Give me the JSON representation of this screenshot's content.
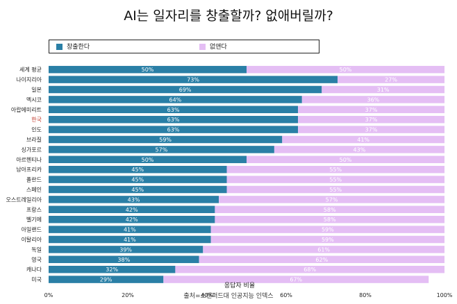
{
  "title": "AI는 일자리를 창출할까? 없애버릴까?",
  "legend": [
    {
      "label": "창출한다",
      "color": "#2a7fa6"
    },
    {
      "label": "없앤다",
      "color": "#e4bef4"
    }
  ],
  "source": "출처=스탠퍼드대 인공지능 인덱스",
  "chart_data": {
    "type": "bar",
    "orientation": "horizontal",
    "stacked": true,
    "title": "AI는 일자리를 창출할까? 없애버릴까?",
    "xlabel": "응답자 비율",
    "ylabel": "",
    "xlim": [
      0,
      100
    ],
    "xticks": [
      "0%",
      "20%",
      "40%",
      "60%",
      "80%",
      "100%"
    ],
    "highlight_category": "한국",
    "highlight_color": "#c0392b",
    "categories": [
      "세계 평균",
      "나이지리아",
      "일본",
      "멕시코",
      "아랍에미리트",
      "한국",
      "인도",
      "브라질",
      "싱가포르",
      "아르헨티나",
      "남아프리카",
      "폴란드",
      "스페인",
      "오스트레일리아",
      "프랑스",
      "벨기에",
      "아일랜드",
      "이탈리아",
      "독일",
      "영국",
      "캐나다",
      "미국"
    ],
    "series": [
      {
        "name": "창출한다",
        "color": "#2a7fa6",
        "values": [
          50,
          73,
          69,
          64,
          63,
          63,
          63,
          59,
          57,
          50,
          45,
          45,
          45,
          43,
          42,
          42,
          41,
          41,
          39,
          38,
          32,
          29
        ],
        "labels": [
          "50%",
          "73%",
          "69%",
          "64%",
          "63%",
          "63%",
          "63%",
          "59%",
          "57%",
          "50%",
          "45%",
          "45%",
          "45%",
          "43%",
          "42%",
          "42%",
          "41%",
          "41%",
          "39%",
          "38%",
          "32%",
          "29%"
        ]
      },
      {
        "name": "없앤다",
        "color": "#e4bef4",
        "values": [
          50,
          27,
          31,
          36,
          37,
          37,
          37,
          41,
          43,
          50,
          55,
          55,
          55,
          57,
          58,
          58,
          59,
          59,
          61,
          62,
          68,
          67
        ],
        "labels": [
          "50%",
          "27%",
          "31%",
          "36%",
          "37%",
          "37%",
          "37%",
          "41%",
          "43%",
          "50%",
          "55%",
          "55%",
          "55%",
          "57%",
          "58%",
          "58%",
          "59%",
          "59%",
          "61%",
          "62%",
          "68%",
          "67%"
        ]
      }
    ]
  }
}
